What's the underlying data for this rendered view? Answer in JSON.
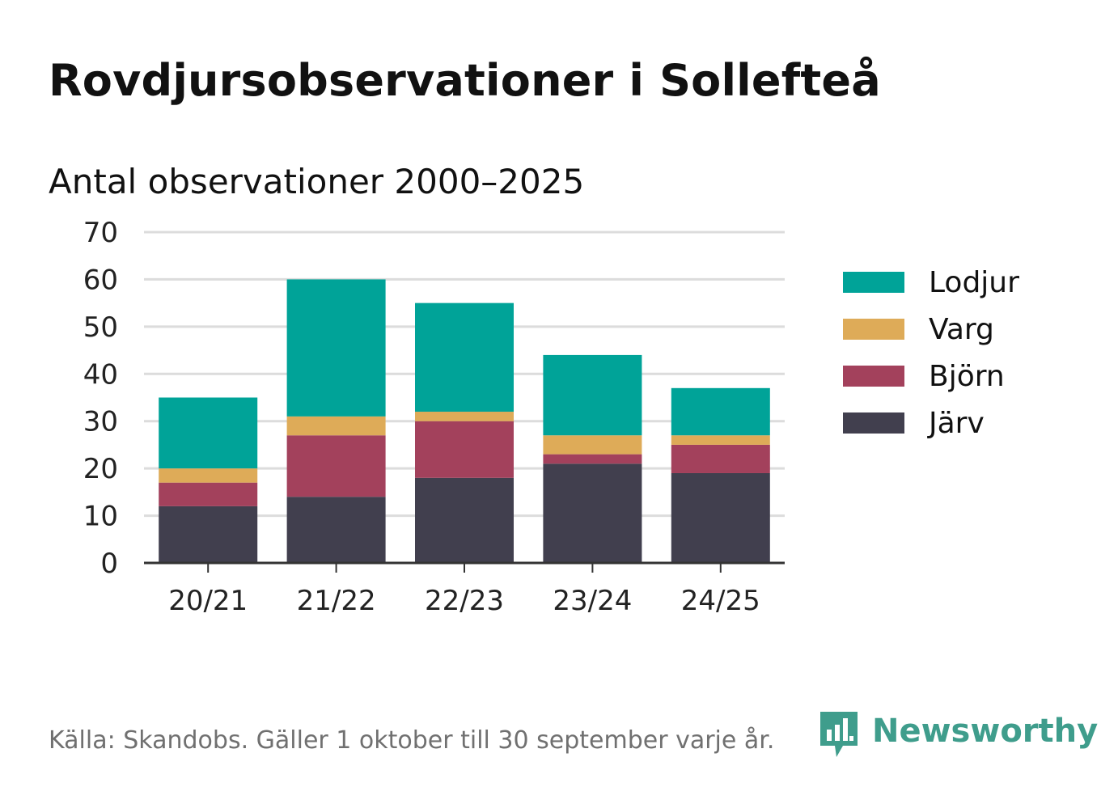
{
  "title": "Rovdjursobservationer i Sollefteå",
  "subtitle": "Antal observationer 2000–2025",
  "footer": "Källa: Skandobs. Gäller 1 oktober till 30 september varje år.",
  "brand": {
    "name": "Newsworthy",
    "color": "#3f9d8c",
    "icon": "newsworthy-logo-icon"
  },
  "legend": [
    {
      "label": "Lodjur",
      "color": "#00a398"
    },
    {
      "label": "Varg",
      "color": "#deab58"
    },
    {
      "label": "Björn",
      "color": "#a3415c"
    },
    {
      "label": "Järv",
      "color": "#413f4e"
    }
  ],
  "chart_data": {
    "type": "bar",
    "stacked": true,
    "title": "Rovdjursobservationer i Sollefteå",
    "subtitle": "Antal observationer 2000–2025",
    "xlabel": "",
    "ylabel": "",
    "categories": [
      "20/21",
      "21/22",
      "22/23",
      "23/24",
      "24/25"
    ],
    "series": [
      {
        "name": "Järv",
        "color": "#413f4e",
        "values": [
          12,
          14,
          18,
          21,
          19
        ]
      },
      {
        "name": "Björn",
        "color": "#a3415c",
        "values": [
          5,
          13,
          12,
          2,
          6
        ]
      },
      {
        "name": "Varg",
        "color": "#deab58",
        "values": [
          3,
          4,
          2,
          4,
          2
        ]
      },
      {
        "name": "Lodjur",
        "color": "#00a398",
        "values": [
          15,
          29,
          23,
          17,
          10
        ]
      }
    ],
    "ylim": [
      0,
      70
    ],
    "yticks": [
      0,
      10,
      20,
      30,
      40,
      50,
      60,
      70
    ],
    "grid": true,
    "legend_position": "right"
  }
}
